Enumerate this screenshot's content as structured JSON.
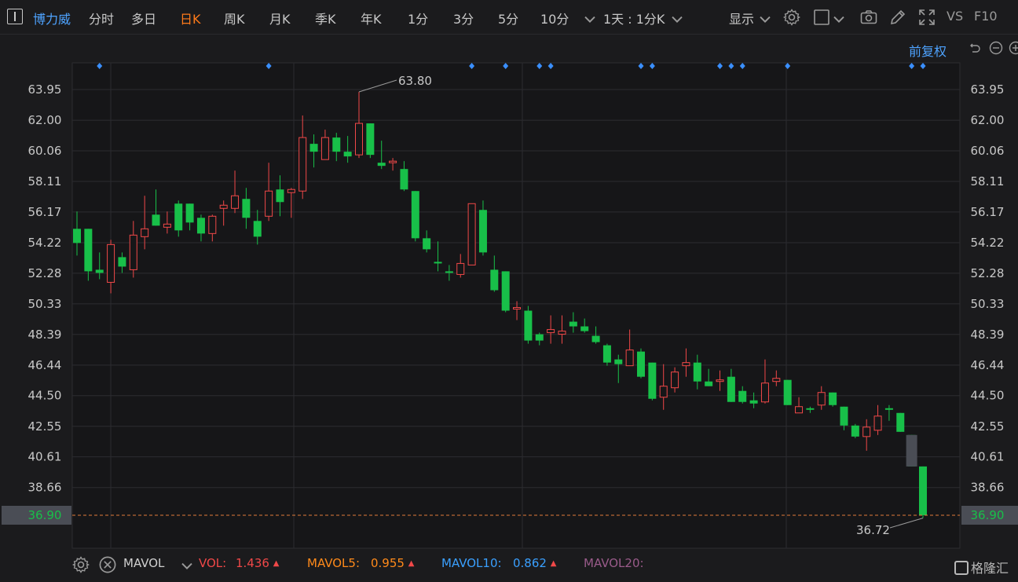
{
  "toolbar": {
    "stock_name": "博力威",
    "tabs": [
      "分时",
      "多日",
      "日K",
      "周K",
      "月K",
      "季K",
      "年K",
      "1分",
      "3分",
      "5分",
      "10分"
    ],
    "active_tab": "日K",
    "interval_label": "1天 : 1分K",
    "display_label": "显示",
    "vs_label": "VS",
    "f10_label": "F10"
  },
  "chart_header": {
    "adjust_label": "前复权"
  },
  "chart_data": {
    "type": "candlestick",
    "y_ticks": [
      "63.95",
      "62.00",
      "60.06",
      "58.11",
      "56.17",
      "54.22",
      "52.28",
      "50.33",
      "48.39",
      "46.44",
      "44.50",
      "42.55",
      "40.61",
      "38.66"
    ],
    "current_price_label": "36.90",
    "current_price": 36.9,
    "high_annotation": "63.80",
    "low_annotation": "36.72",
    "ylim": [
      36.0,
      65.2
    ],
    "up_color": "#f04848",
    "down_color": "#18c049",
    "candles": [
      [
        55.1,
        54.2,
        56.2,
        53.4
      ],
      [
        55.1,
        52.4,
        55.1,
        51.8
      ],
      [
        52.5,
        52.3,
        53.6,
        51.9
      ],
      [
        51.7,
        54.1,
        54.4,
        51.0
      ],
      [
        53.3,
        52.7,
        53.6,
        52.3
      ],
      [
        52.5,
        54.7,
        55.6,
        52.0
      ],
      [
        54.6,
        55.1,
        57.2,
        53.8
      ],
      [
        56.0,
        55.3,
        57.6,
        55.3
      ],
      [
        55.2,
        55.4,
        56.2,
        54.8
      ],
      [
        56.7,
        55.0,
        56.9,
        54.6
      ],
      [
        56.7,
        55.5,
        56.7,
        55.0
      ],
      [
        55.8,
        54.8,
        56.0,
        54.3
      ],
      [
        54.8,
        55.9,
        56.0,
        54.3
      ],
      [
        56.4,
        56.6,
        56.9,
        55.3
      ],
      [
        56.4,
        57.2,
        58.8,
        56.1
      ],
      [
        57.0,
        55.8,
        57.7,
        55.1
      ],
      [
        55.6,
        54.6,
        56.3,
        54.1
      ],
      [
        55.9,
        57.5,
        59.3,
        55.6
      ],
      [
        57.6,
        56.8,
        58.5,
        55.9
      ],
      [
        57.4,
        57.6,
        57.7,
        55.8
      ],
      [
        57.5,
        60.9,
        62.3,
        57.0
      ],
      [
        60.5,
        60.0,
        61.1,
        59.0
      ],
      [
        59.5,
        60.9,
        61.4,
        59.5
      ],
      [
        60.9,
        60.0,
        61.2,
        59.4
      ],
      [
        60.0,
        59.7,
        61.0,
        59.3
      ],
      [
        59.8,
        61.8,
        63.8,
        59.6
      ],
      [
        61.8,
        59.8,
        61.8,
        59.6
      ],
      [
        59.3,
        59.1,
        60.7,
        58.9
      ],
      [
        59.3,
        59.4,
        59.6,
        58.8
      ],
      [
        58.9,
        57.6,
        59.4,
        57.5
      ],
      [
        57.5,
        54.5,
        57.5,
        54.3
      ],
      [
        54.5,
        53.8,
        55.0,
        53.6
      ],
      [
        53.0,
        52.9,
        54.3,
        52.4
      ],
      [
        52.4,
        52.3,
        52.8,
        51.8
      ],
      [
        52.2,
        52.9,
        53.5,
        52.0
      ],
      [
        52.8,
        56.7,
        56.7,
        52.8
      ],
      [
        56.3,
        53.6,
        56.9,
        53.4
      ],
      [
        52.5,
        51.2,
        53.4,
        51.1
      ],
      [
        52.4,
        49.9,
        52.4,
        49.8
      ],
      [
        50.0,
        50.1,
        50.5,
        49.3
      ],
      [
        49.9,
        48.0,
        50.2,
        47.8
      ],
      [
        48.4,
        48.0,
        48.5,
        47.7
      ],
      [
        48.5,
        48.7,
        49.6,
        47.8
      ],
      [
        48.4,
        48.6,
        49.6,
        47.8
      ],
      [
        49.2,
        48.9,
        49.8,
        48.5
      ],
      [
        48.9,
        48.6,
        49.4,
        48.5
      ],
      [
        48.3,
        47.9,
        48.9,
        47.8
      ],
      [
        47.7,
        46.6,
        47.8,
        46.4
      ],
      [
        46.8,
        46.5,
        47.1,
        45.3
      ],
      [
        46.4,
        47.4,
        48.7,
        46.4
      ],
      [
        47.3,
        45.7,
        47.5,
        45.6
      ],
      [
        46.6,
        44.3,
        46.6,
        44.2
      ],
      [
        44.4,
        45.1,
        46.5,
        43.6
      ],
      [
        45.0,
        46.0,
        46.3,
        44.7
      ],
      [
        46.4,
        46.6,
        47.5,
        45.7
      ],
      [
        46.6,
        45.4,
        47.1,
        44.9
      ],
      [
        45.4,
        45.1,
        46.2,
        45.1
      ],
      [
        45.4,
        45.5,
        46.1,
        44.8
      ],
      [
        45.7,
        44.1,
        46.2,
        44.1
      ],
      [
        44.8,
        44.1,
        45.1,
        44.0
      ],
      [
        44.2,
        44.0,
        44.7,
        43.7
      ],
      [
        44.1,
        45.3,
        46.8,
        44.0
      ],
      [
        45.4,
        45.6,
        46.1,
        45.1
      ],
      [
        45.5,
        43.9,
        45.5,
        43.9
      ],
      [
        43.4,
        43.8,
        44.4,
        43.4
      ],
      [
        43.7,
        43.6,
        43.8,
        43.4
      ],
      [
        43.9,
        44.7,
        45.1,
        43.6
      ],
      [
        44.7,
        43.9,
        44.7,
        43.8
      ],
      [
        43.8,
        42.6,
        43.8,
        42.3
      ],
      [
        42.6,
        41.9,
        42.7,
        41.8
      ],
      [
        41.9,
        42.5,
        43.0,
        41.0
      ],
      [
        42.3,
        43.2,
        43.9,
        42.0
      ],
      [
        43.7,
        43.6,
        43.9,
        42.9
      ],
      [
        43.4,
        42.2,
        43.4,
        42.2
      ],
      [
        42.0,
        40.0,
        42.0,
        40.0
      ],
      [
        40.0,
        36.9,
        40.0,
        36.72
      ]
    ],
    "event_markers": [
      2,
      17,
      35,
      38,
      41,
      42,
      50,
      51,
      57,
      58,
      59,
      63,
      74,
      75
    ]
  },
  "volume": {
    "indicator": "MAVOL",
    "vol_label": "VOL:",
    "vol_value": "1.436",
    "ma5_label": "MAVOL5:",
    "ma5_value": "0.955",
    "ma10_label": "MAVOL10:",
    "ma10_value": "0.862",
    "ma20_label": "MAVOL20:"
  },
  "watermark": "格隆汇"
}
